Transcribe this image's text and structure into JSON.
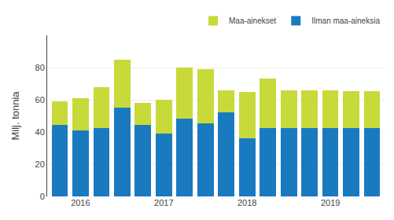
{
  "chart_data": {
    "type": "bar",
    "stacked": true,
    "categories": [
      null,
      "2016",
      null,
      null,
      null,
      "2017",
      null,
      null,
      null,
      "2018",
      null,
      null,
      null,
      "2019",
      null,
      null
    ],
    "series": [
      {
        "name": "Ilman maa-aineksia",
        "color": "#1a7abf",
        "values": [
          44.5,
          41.0,
          42.5,
          55.0,
          44.5,
          39.0,
          48.5,
          45.5,
          52.0,
          36.0,
          42.5,
          42.5,
          42.5,
          42.5,
          42.5,
          42.5
        ]
      },
      {
        "name": "Maa-ainekset",
        "color": "#c8d93a",
        "values": [
          14.5,
          20.0,
          25.5,
          30.0,
          13.5,
          21.0,
          31.5,
          33.5,
          14.0,
          29.0,
          30.5,
          23.5,
          23.5,
          23.5,
          23.0,
          23.0
        ]
      }
    ],
    "ylabel": "Milj. tonnia",
    "ylim": [
      0,
      100
    ],
    "yticks": [
      0,
      20,
      40,
      60,
      80
    ],
    "grid": true,
    "legend": "upper right"
  }
}
